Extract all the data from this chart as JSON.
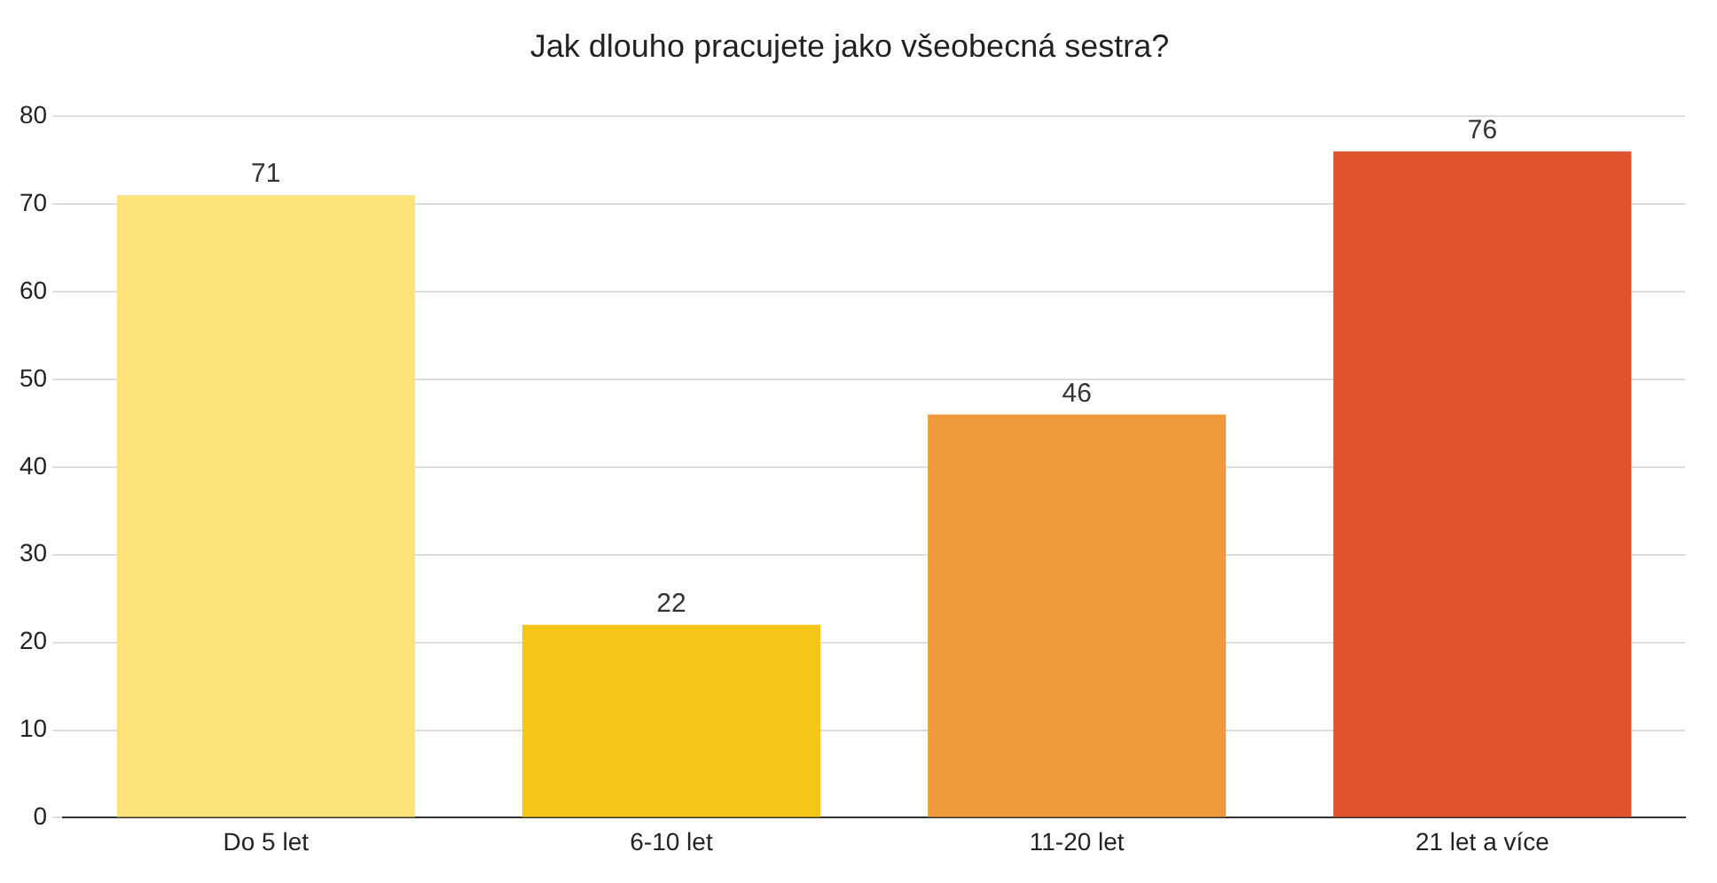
{
  "chart_data": {
    "type": "bar",
    "title": "Jak dlouho pracujete jako všeobecná sestra?",
    "categories": [
      "Do 5 let",
      "6-10 let",
      "11-20 let",
      "21 let a více"
    ],
    "values": [
      71,
      22,
      46,
      76
    ],
    "colors": [
      "#fde27a",
      "#f6c519",
      "#ed9a3b",
      "#e0532e"
    ],
    "ylim": [
      0,
      80
    ],
    "yticks": [
      0,
      10,
      20,
      30,
      40,
      50,
      60,
      70,
      80
    ],
    "grid": "y",
    "data_labels": true,
    "legend": false
  }
}
